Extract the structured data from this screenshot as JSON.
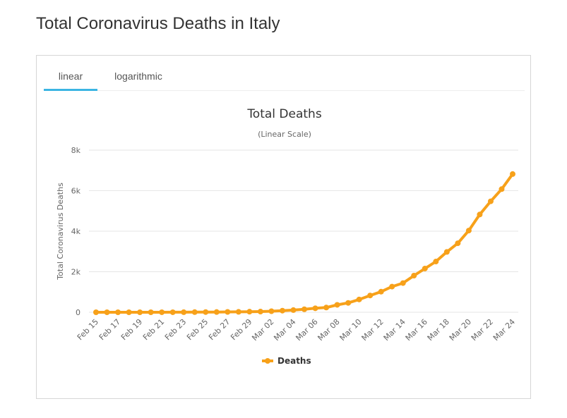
{
  "page": {
    "title": "Total Coronavirus Deaths in Italy"
  },
  "tabs": [
    {
      "label": "linear",
      "active": true
    },
    {
      "label": "logarithmic",
      "active": false
    }
  ],
  "chart_data": {
    "type": "line",
    "title": "Total Deaths",
    "subtitle": "(Linear Scale)",
    "xlabel": "",
    "ylabel": "Total Coronavirus Deaths",
    "ylim": [
      0,
      8000
    ],
    "y_ticks": [
      0,
      2000,
      4000,
      6000,
      8000
    ],
    "y_tick_labels": [
      "0",
      "2k",
      "4k",
      "6k",
      "8k"
    ],
    "x_tick_labels": [
      "Feb 15",
      "Feb 17",
      "Feb 19",
      "Feb 21",
      "Feb 23",
      "Feb 25",
      "Feb 27",
      "Feb 29",
      "Mar 02",
      "Mar 04",
      "Mar 06",
      "Mar 08",
      "Mar 10",
      "Mar 12",
      "Mar 14",
      "Mar 16",
      "Mar 18",
      "Mar 20",
      "Mar 22",
      "Mar 24"
    ],
    "categories": [
      "Feb 15",
      "Feb 16",
      "Feb 17",
      "Feb 18",
      "Feb 19",
      "Feb 20",
      "Feb 21",
      "Feb 22",
      "Feb 23",
      "Feb 24",
      "Feb 25",
      "Feb 26",
      "Feb 27",
      "Feb 28",
      "Feb 29",
      "Mar 01",
      "Mar 02",
      "Mar 03",
      "Mar 04",
      "Mar 05",
      "Mar 06",
      "Mar 07",
      "Mar 08",
      "Mar 09",
      "Mar 10",
      "Mar 11",
      "Mar 12",
      "Mar 13",
      "Mar 14",
      "Mar 15",
      "Mar 16",
      "Mar 17",
      "Mar 18",
      "Mar 19",
      "Mar 20",
      "Mar 21",
      "Mar 22",
      "Mar 23",
      "Mar 24"
    ],
    "series": [
      {
        "name": "Deaths",
        "color": "#f7a11a",
        "values": [
          0,
          0,
          0,
          0,
          0,
          0,
          1,
          2,
          3,
          7,
          10,
          12,
          17,
          21,
          29,
          34,
          52,
          79,
          107,
          148,
          197,
          233,
          366,
          463,
          631,
          827,
          1016,
          1266,
          1441,
          1809,
          2158,
          2503,
          2978,
          3405,
          4032,
          4825,
          5476,
          6077,
          6820
        ]
      }
    ],
    "legend": {
      "position": "bottom-center"
    },
    "grid": true,
    "colors": {
      "line": "#f7a11a",
      "grid": "#e6e6e6",
      "tab_active": "#3bb5e3"
    }
  }
}
